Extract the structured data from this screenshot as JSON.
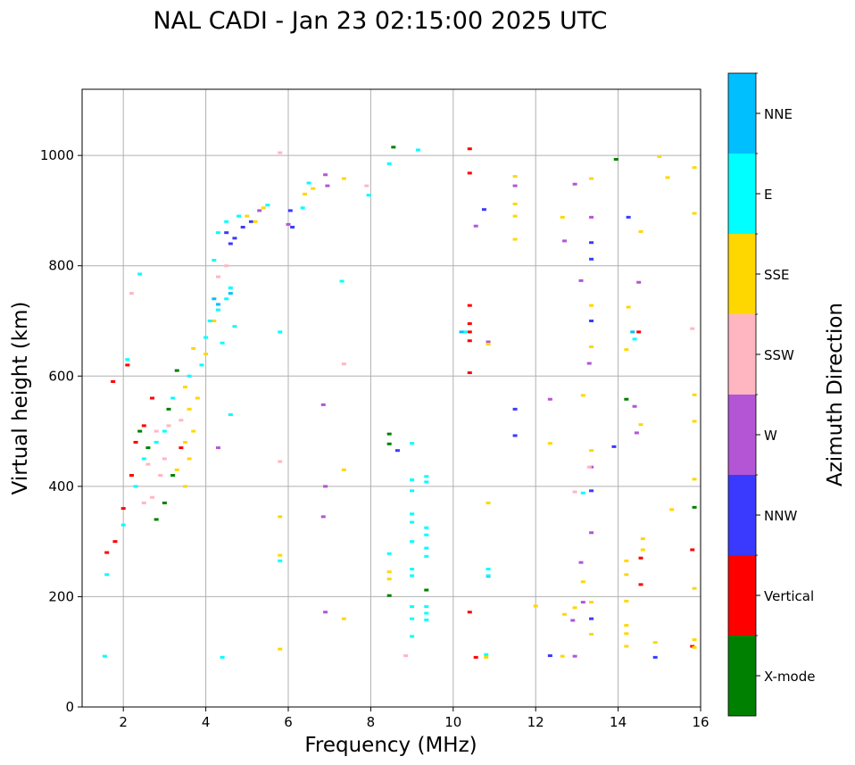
{
  "chart_data": {
    "type": "scatter",
    "title": "NAL CADI - Jan 23 02:15:00 2025 UTC",
    "xlabel": "Frequency (MHz)",
    "ylabel": "Virtual height (km)",
    "xlim": [
      1,
      16
    ],
    "ylim": [
      0,
      1120
    ],
    "xticks": [
      2,
      4,
      6,
      8,
      10,
      12,
      14,
      16
    ],
    "yticks": [
      0,
      200,
      400,
      600,
      800,
      1000
    ],
    "grid": true,
    "colorbar": {
      "label": "Azimuth Direction",
      "categories": [
        {
          "name": "X-mode",
          "color": "#008000"
        },
        {
          "name": "Vertical",
          "color": "#ff0000"
        },
        {
          "name": "NNW",
          "color": "#3a3aff"
        },
        {
          "name": "W",
          "color": "#b455d6"
        },
        {
          "name": "SSW",
          "color": "#ffb6c1"
        },
        {
          "name": "SSE",
          "color": "#ffd700"
        },
        {
          "name": "E",
          "color": "#00ffff"
        },
        {
          "name": "NNE",
          "color": "#00bfff"
        }
      ]
    },
    "series": [
      {
        "name": "X-mode",
        "points": [
          [
            8.55,
            1015
          ],
          [
            13.95,
            993
          ],
          [
            8.45,
            495
          ],
          [
            8.45,
            477
          ],
          [
            9.35,
            212
          ],
          [
            8.45,
            202
          ],
          [
            14.2,
            558
          ],
          [
            15.85,
            362
          ],
          [
            2.8,
            340
          ],
          [
            3.0,
            370
          ],
          [
            3.2,
            420
          ],
          [
            3.1,
            540
          ],
          [
            2.6,
            470
          ],
          [
            2.4,
            500
          ],
          [
            3.3,
            610
          ]
        ]
      },
      {
        "name": "Vertical",
        "points": [
          [
            10.4,
            1012
          ],
          [
            10.4,
            968
          ],
          [
            10.4,
            728
          ],
          [
            10.4,
            695
          ],
          [
            10.4,
            680
          ],
          [
            10.4,
            664
          ],
          [
            10.4,
            606
          ],
          [
            10.4,
            172
          ],
          [
            10.55,
            90
          ],
          [
            14.5,
            680
          ],
          [
            14.55,
            270
          ],
          [
            14.55,
            222
          ],
          [
            15.8,
            285
          ],
          [
            15.8,
            110
          ],
          [
            1.6,
            280
          ],
          [
            1.8,
            300
          ],
          [
            2.0,
            360
          ],
          [
            2.2,
            420
          ],
          [
            2.3,
            480
          ],
          [
            2.5,
            510
          ],
          [
            2.7,
            560
          ],
          [
            1.75,
            590
          ],
          [
            2.1,
            620
          ],
          [
            3.4,
            470
          ]
        ]
      },
      {
        "name": "NNW",
        "points": [
          [
            10.75,
            902
          ],
          [
            13.35,
            842
          ],
          [
            13.35,
            812
          ],
          [
            13.35,
            700
          ],
          [
            14.25,
            888
          ],
          [
            11.5,
            540
          ],
          [
            11.5,
            492
          ],
          [
            8.65,
            465
          ],
          [
            13.35,
            392
          ],
          [
            13.35,
            160
          ],
          [
            12.35,
            93
          ],
          [
            14.9,
            90
          ],
          [
            13.9,
            472
          ],
          [
            4.5,
            860
          ],
          [
            4.7,
            850
          ],
          [
            4.9,
            870
          ],
          [
            5.1,
            880
          ],
          [
            4.6,
            840
          ],
          [
            6.05,
            900
          ],
          [
            6.1,
            870
          ]
        ]
      },
      {
        "name": "W",
        "points": [
          [
            6.9,
            965
          ],
          [
            6.95,
            945
          ],
          [
            10.55,
            872
          ],
          [
            11.5,
            945
          ],
          [
            12.95,
            948
          ],
          [
            12.7,
            845
          ],
          [
            13.35,
            888
          ],
          [
            13.1,
            773
          ],
          [
            14.5,
            770
          ],
          [
            13.3,
            623
          ],
          [
            14.4,
            545
          ],
          [
            14.45,
            497
          ],
          [
            10.85,
            662
          ],
          [
            12.35,
            558
          ],
          [
            13.35,
            435
          ],
          [
            13.35,
            316
          ],
          [
            13.1,
            262
          ],
          [
            13.15,
            190
          ],
          [
            12.9,
            157
          ],
          [
            12.95,
            92
          ],
          [
            10.85,
            237
          ],
          [
            6.9,
            172
          ],
          [
            6.85,
            548
          ],
          [
            6.9,
            400
          ],
          [
            6.85,
            345
          ],
          [
            4.3,
            470
          ],
          [
            5.3,
            900
          ],
          [
            6.0,
            875
          ]
        ]
      },
      {
        "name": "SSW",
        "points": [
          [
            5.8,
            1005
          ],
          [
            7.9,
            945
          ],
          [
            13.3,
            435
          ],
          [
            12.95,
            390
          ],
          [
            8.85,
            93
          ],
          [
            15.8,
            686
          ],
          [
            7.35,
            622
          ],
          [
            5.8,
            445
          ],
          [
            2.5,
            370
          ],
          [
            2.7,
            380
          ],
          [
            2.9,
            420
          ],
          [
            3.0,
            450
          ],
          [
            2.8,
            500
          ],
          [
            3.1,
            510
          ],
          [
            2.6,
            440
          ],
          [
            3.4,
            520
          ],
          [
            2.2,
            750
          ],
          [
            4.3,
            780
          ],
          [
            4.5,
            800
          ]
        ]
      },
      {
        "name": "SSE",
        "points": [
          [
            6.6,
            940
          ],
          [
            6.4,
            930
          ],
          [
            7.35,
            958
          ],
          [
            11.5,
            962
          ],
          [
            11.5,
            890
          ],
          [
            11.5,
            848
          ],
          [
            11.5,
            912
          ],
          [
            12.65,
            888
          ],
          [
            13.35,
            958
          ],
          [
            13.35,
            728
          ],
          [
            13.35,
            653
          ],
          [
            13.35,
            465
          ],
          [
            14.55,
            862
          ],
          [
            14.25,
            725
          ],
          [
            14.2,
            648
          ],
          [
            15.0,
            998
          ],
          [
            15.2,
            960
          ],
          [
            15.85,
            978
          ],
          [
            15.85,
            895
          ],
          [
            15.85,
            566
          ],
          [
            15.85,
            518
          ],
          [
            15.85,
            413
          ],
          [
            15.85,
            215
          ],
          [
            15.85,
            122
          ],
          [
            15.85,
            108
          ],
          [
            14.55,
            512
          ],
          [
            12.35,
            478
          ],
          [
            13.15,
            565
          ],
          [
            13.15,
            227
          ],
          [
            13.35,
            190
          ],
          [
            13.35,
            132
          ],
          [
            14.2,
            265
          ],
          [
            14.2,
            240
          ],
          [
            14.2,
            192
          ],
          [
            14.2,
            148
          ],
          [
            14.2,
            133
          ],
          [
            14.2,
            110
          ],
          [
            14.6,
            305
          ],
          [
            14.6,
            285
          ],
          [
            14.9,
            117
          ],
          [
            15.3,
            358
          ],
          [
            12.95,
            180
          ],
          [
            12.7,
            168
          ],
          [
            12.65,
            92
          ],
          [
            12.0,
            183
          ],
          [
            10.85,
            370
          ],
          [
            10.85,
            658
          ],
          [
            10.8,
            90
          ],
          [
            8.45,
            245
          ],
          [
            8.45,
            232
          ],
          [
            7.35,
            430
          ],
          [
            7.35,
            160
          ],
          [
            5.8,
            345
          ],
          [
            5.8,
            275
          ],
          [
            5.8,
            105
          ],
          [
            3.5,
            480
          ],
          [
            3.7,
            500
          ],
          [
            3.5,
            580
          ],
          [
            3.6,
            540
          ],
          [
            3.3,
            430
          ],
          [
            3.5,
            400
          ],
          [
            3.6,
            450
          ],
          [
            3.8,
            560
          ],
          [
            4.0,
            640
          ],
          [
            4.2,
            700
          ],
          [
            5.0,
            890
          ],
          [
            5.2,
            880
          ],
          [
            5.4,
            905
          ],
          [
            3.7,
            650
          ]
        ]
      },
      {
        "name": "E",
        "points": [
          [
            8.45,
            985
          ],
          [
            9.15,
            1010
          ],
          [
            7.95,
            928
          ],
          [
            6.35,
            905
          ],
          [
            6.5,
            950
          ],
          [
            10.3,
            680
          ],
          [
            14.4,
            667
          ],
          [
            13.15,
            388
          ],
          [
            9.0,
            478
          ],
          [
            9.0,
            412
          ],
          [
            9.0,
            392
          ],
          [
            9.0,
            350
          ],
          [
            9.0,
            335
          ],
          [
            9.0,
            300
          ],
          [
            9.0,
            250
          ],
          [
            9.0,
            238
          ],
          [
            9.0,
            182
          ],
          [
            9.0,
            160
          ],
          [
            9.0,
            128
          ],
          [
            9.35,
            418
          ],
          [
            9.35,
            408
          ],
          [
            9.35,
            325
          ],
          [
            9.35,
            312
          ],
          [
            9.35,
            288
          ],
          [
            9.35,
            273
          ],
          [
            9.35,
            182
          ],
          [
            9.35,
            170
          ],
          [
            9.35,
            158
          ],
          [
            8.45,
            278
          ],
          [
            10.85,
            250
          ],
          [
            10.85,
            238
          ],
          [
            10.8,
            95
          ],
          [
            5.8,
            680
          ],
          [
            7.3,
            772
          ],
          [
            5.8,
            265
          ],
          [
            4.4,
            90
          ],
          [
            4.6,
            530
          ],
          [
            1.55,
            92
          ],
          [
            1.6,
            240
          ],
          [
            2.0,
            330
          ],
          [
            2.3,
            400
          ],
          [
            2.5,
            450
          ],
          [
            2.8,
            480
          ],
          [
            3.0,
            500
          ],
          [
            3.2,
            560
          ],
          [
            3.6,
            600
          ],
          [
            3.9,
            620
          ],
          [
            4.0,
            670
          ],
          [
            4.1,
            700
          ],
          [
            4.3,
            720
          ],
          [
            4.5,
            740
          ],
          [
            4.6,
            760
          ],
          [
            4.7,
            690
          ],
          [
            4.4,
            660
          ],
          [
            4.2,
            810
          ],
          [
            4.3,
            860
          ],
          [
            4.5,
            880
          ],
          [
            4.8,
            890
          ],
          [
            5.5,
            910
          ],
          [
            2.4,
            785
          ],
          [
            2.1,
            630
          ]
        ]
      },
      {
        "name": "NNE",
        "points": [
          [
            10.2,
            680
          ],
          [
            14.35,
            680
          ],
          [
            4.2,
            740
          ],
          [
            4.3,
            730
          ],
          [
            4.6,
            750
          ]
        ]
      }
    ]
  }
}
